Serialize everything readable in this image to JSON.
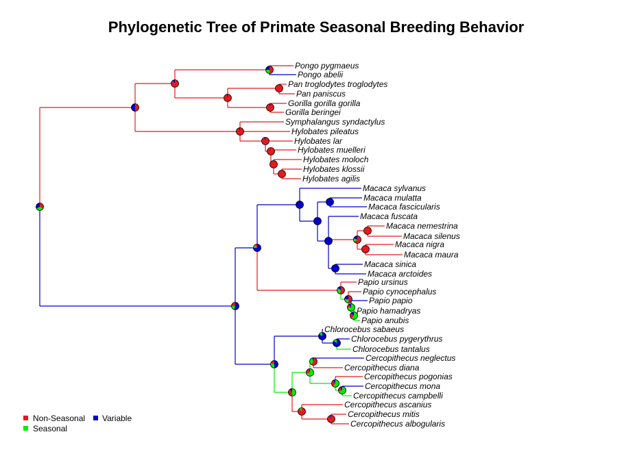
{
  "title": "Phylogenetic Tree of Primate Seasonal Breeding Behavior",
  "colors": {
    "Non-Seasonal": "#e41a1c",
    "Seasonal": "#00ee00",
    "Variable": "#0000cc"
  },
  "legend": {
    "items": [
      {
        "label": "Non-Seasonal",
        "state": "Non-Seasonal"
      },
      {
        "label": "Variable",
        "state": "Variable"
      },
      {
        "label": "Seasonal",
        "state": "Seasonal"
      }
    ]
  },
  "tips": [
    "Pongo pygmaeus",
    "Pongo abelii",
    "Pan troglodytes troglodytes",
    "Pan paniscus",
    "Gorilla gorilla gorilla",
    "Gorilla beringei",
    "Symphalangus syndactylus",
    "Hylobates pileatus",
    "Hylobates lar",
    "Hylobates muelleri",
    "Hylobates moloch",
    "Hylobates klossii",
    "Hylobates agilis",
    "Macaca sylvanus",
    "Macaca mulatta",
    "Macaca fascicularis",
    "Macaca fuscata",
    "Macaca nemestrina",
    "Macaca silenus",
    "Macaca nigra",
    "Macaca maura",
    "Macaca sinica",
    "Macaca arctoides",
    "Papio ursinus",
    "Papio cynocephalus",
    "Papio papio",
    "Papio hamadryas",
    "Papio anubis",
    "Chlorocebus sabaeus",
    "Chlorocebus pygerythrus",
    "Chlorocebus tantalus",
    "Cercopithecus neglectus",
    "Cercopithecus diana",
    "Cercopithecus pogonias",
    "Cercopithecus mona",
    "Cercopithecus campbelli",
    "Cercopithecus ascanius",
    "Cercopithecus mitis",
    "Cercopithecus albogularis"
  ]
}
